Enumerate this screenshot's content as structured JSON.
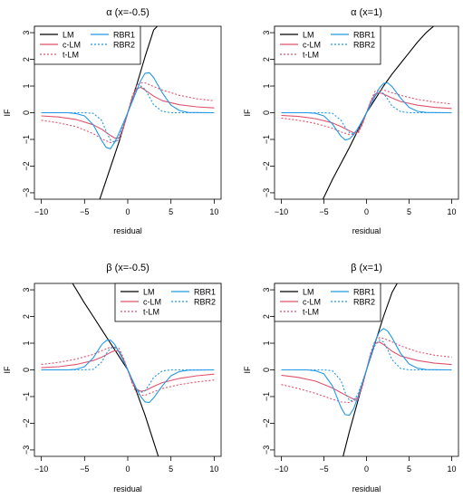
{
  "chart_data": [
    {
      "type": "line",
      "title": "α (x=-0.5)",
      "xlabel": "residual",
      "ylabel": "IF",
      "xlim": [
        -10,
        10
      ],
      "ylim": [
        -3,
        3
      ],
      "xticks": [
        -10,
        -5,
        0,
        5,
        10
      ],
      "yticks": [
        -3,
        -2,
        -1,
        0,
        1,
        2,
        3
      ],
      "legend_position": "top-left",
      "series": [
        {
          "name": "LM",
          "color": "#000000",
          "dash": "solid",
          "x": [
            -3.3,
            -2,
            -1,
            0,
            1,
            2,
            3,
            3.6
          ],
          "y": [
            -3.3,
            -2.05,
            -1.08,
            0,
            1.0,
            2.1,
            3.1,
            3.3
          ]
        },
        {
          "name": "c-LM",
          "color": "#df536b",
          "dash": "solid",
          "x": [
            -10,
            -8,
            -6,
            -4,
            -3,
            -2,
            -1.5,
            -1,
            -0.5,
            0,
            0.5,
            1,
            1.5,
            2,
            3,
            4,
            6,
            8,
            10
          ],
          "y": [
            -0.12,
            -0.16,
            -0.25,
            -0.45,
            -0.62,
            -0.85,
            -0.95,
            -0.95,
            -0.55,
            0,
            0.55,
            0.9,
            0.95,
            0.85,
            0.62,
            0.45,
            0.3,
            0.22,
            0.18
          ]
        },
        {
          "name": "t-LM",
          "color": "#df536b",
          "dash": "dotted",
          "x": [
            -10,
            -8,
            -6,
            -4,
            -3,
            -2,
            -1,
            -0.5,
            0,
            0.5,
            1,
            1.5,
            2,
            3,
            4,
            6,
            8,
            10
          ],
          "y": [
            -0.28,
            -0.38,
            -0.52,
            -0.78,
            -0.98,
            -1.12,
            -1.02,
            -0.6,
            0,
            0.6,
            1.02,
            1.12,
            1.12,
            0.98,
            0.85,
            0.65,
            0.52,
            0.45
          ]
        },
        {
          "name": "RBR1",
          "color": "#2297e6",
          "dash": "solid",
          "x": [
            -10,
            -7,
            -6,
            -5,
            -4,
            -3,
            -2.5,
            -2,
            -1.5,
            -1,
            -0.5,
            0,
            0.5,
            1,
            1.5,
            2,
            2.5,
            3,
            4,
            5,
            6,
            7,
            10
          ],
          "y": [
            0,
            0,
            -0.03,
            -0.12,
            -0.45,
            -1.05,
            -1.3,
            -1.35,
            -1.1,
            -0.75,
            -0.38,
            0,
            0.4,
            0.8,
            1.2,
            1.48,
            1.5,
            1.32,
            0.75,
            0.28,
            0.08,
            0.01,
            0
          ]
        },
        {
          "name": "RBR2",
          "color": "#2297e6",
          "dash": "dotted",
          "x": [
            -10,
            -5,
            -4,
            -3,
            -2.5,
            -2,
            -1.5,
            -1,
            -0.5,
            0,
            0.5,
            1,
            1.5,
            2,
            2.5,
            3,
            4,
            5,
            10
          ],
          "y": [
            0,
            0,
            -0.02,
            -0.3,
            -0.7,
            -1.02,
            -1.12,
            -0.9,
            -0.45,
            0,
            0.45,
            0.85,
            1.0,
            0.88,
            0.6,
            0.3,
            0.05,
            0,
            0
          ]
        }
      ]
    },
    {
      "type": "line",
      "title": "α (x=1)",
      "xlabel": "residual",
      "ylabel": "IF",
      "xlim": [
        -10,
        10
      ],
      "ylim": [
        -3,
        3
      ],
      "xticks": [
        -10,
        -5,
        0,
        5,
        10
      ],
      "yticks": [
        -3,
        -2,
        -1,
        0,
        1,
        2,
        3
      ],
      "legend_position": "top-left",
      "series": [
        {
          "name": "LM",
          "color": "#000000",
          "dash": "solid",
          "x": [
            -5.2,
            -4,
            -3,
            -2,
            -1,
            0,
            1,
            2,
            3,
            4,
            5,
            6,
            7,
            8.1
          ],
          "y": [
            -3.3,
            -2.5,
            -1.9,
            -1.3,
            -0.65,
            0,
            0.5,
            1.0,
            1.45,
            1.85,
            2.25,
            2.65,
            3.0,
            3.3
          ]
        },
        {
          "name": "c-LM",
          "color": "#df536b",
          "dash": "solid",
          "x": [
            -10,
            -8,
            -6,
            -4,
            -3,
            -2,
            -1.5,
            -1,
            -0.5,
            0,
            0.5,
            1,
            1.5,
            2,
            3,
            4,
            6,
            8,
            10
          ],
          "y": [
            -0.1,
            -0.14,
            -0.22,
            -0.38,
            -0.52,
            -0.68,
            -0.75,
            -0.72,
            -0.42,
            0,
            0.42,
            0.7,
            0.75,
            0.7,
            0.55,
            0.42,
            0.28,
            0.2,
            0.16
          ]
        },
        {
          "name": "t-LM",
          "color": "#df536b",
          "dash": "dotted",
          "x": [
            -10,
            -8,
            -6,
            -4,
            -3,
            -2,
            -1,
            -0.5,
            0,
            0.5,
            1,
            1.5,
            2,
            3,
            4,
            6,
            8,
            10
          ],
          "y": [
            -0.2,
            -0.28,
            -0.4,
            -0.58,
            -0.72,
            -0.82,
            -0.78,
            -0.45,
            0,
            0.45,
            0.8,
            0.86,
            0.85,
            0.75,
            0.65,
            0.5,
            0.4,
            0.33
          ]
        },
        {
          "name": "RBR1",
          "color": "#2297e6",
          "dash": "solid",
          "x": [
            -10,
            -7,
            -6,
            -5,
            -4,
            -3,
            -2.5,
            -2,
            -1.5,
            -1,
            -0.5,
            0,
            0.5,
            1,
            1.5,
            2,
            2.5,
            3,
            4,
            5,
            6,
            7,
            10
          ],
          "y": [
            0,
            0,
            -0.02,
            -0.12,
            -0.42,
            -0.88,
            -1.02,
            -0.98,
            -0.82,
            -0.58,
            -0.3,
            0,
            0.3,
            0.62,
            0.92,
            1.1,
            1.12,
            0.98,
            0.55,
            0.2,
            0.05,
            0.01,
            0
          ]
        },
        {
          "name": "RBR2",
          "color": "#2297e6",
          "dash": "dotted",
          "x": [
            -10,
            -5,
            -4,
            -3,
            -2.5,
            -2,
            -1.5,
            -1,
            -0.5,
            0,
            0.5,
            1,
            1.5,
            2,
            2.5,
            3,
            4,
            5,
            10
          ],
          "y": [
            0,
            0,
            -0.02,
            -0.28,
            -0.55,
            -0.75,
            -0.78,
            -0.62,
            -0.32,
            0,
            0.35,
            0.65,
            0.78,
            0.72,
            0.5,
            0.25,
            0.04,
            0,
            0
          ]
        }
      ]
    },
    {
      "type": "line",
      "title": "β (x=-0.5)",
      "xlabel": "residual",
      "ylabel": "IF",
      "xlim": [
        -10,
        10
      ],
      "ylim": [
        -3,
        3
      ],
      "xticks": [
        -10,
        -5,
        0,
        5,
        10
      ],
      "yticks": [
        -3,
        -2,
        -1,
        0,
        1,
        2,
        3
      ],
      "legend_position": "top-right",
      "series": [
        {
          "name": "LM",
          "color": "#000000",
          "dash": "solid",
          "x": [
            -6.5,
            -5,
            -4,
            -3,
            -2,
            -1,
            0,
            1,
            2,
            3,
            3.6
          ],
          "y": [
            3.3,
            2.5,
            2.0,
            1.5,
            1.0,
            0.5,
            0,
            -0.8,
            -1.7,
            -2.7,
            -3.3
          ]
        },
        {
          "name": "c-LM",
          "color": "#df536b",
          "dash": "solid",
          "x": [
            -10,
            -8,
            -6,
            -4,
            -3,
            -2,
            -1.5,
            -1,
            -0.5,
            0,
            0.5,
            1,
            1.5,
            2,
            3,
            4,
            6,
            8,
            10
          ],
          "y": [
            0.08,
            0.12,
            0.2,
            0.35,
            0.48,
            0.65,
            0.72,
            0.7,
            0.4,
            0,
            -0.45,
            -0.72,
            -0.8,
            -0.78,
            -0.62,
            -0.48,
            -0.32,
            -0.22,
            -0.16
          ]
        },
        {
          "name": "t-LM",
          "color": "#df536b",
          "dash": "dotted",
          "x": [
            -10,
            -8,
            -6,
            -4,
            -3,
            -2,
            -1,
            -0.5,
            0,
            0.5,
            1,
            1.5,
            2,
            3,
            4,
            6,
            8,
            10
          ],
          "y": [
            0.2,
            0.28,
            0.4,
            0.58,
            0.72,
            0.85,
            0.8,
            0.45,
            0,
            -0.5,
            -0.85,
            -0.95,
            -0.95,
            -0.82,
            -0.7,
            -0.55,
            -0.45,
            -0.38
          ]
        },
        {
          "name": "RBR1",
          "color": "#2297e6",
          "dash": "solid",
          "x": [
            -10,
            -7,
            -6,
            -5,
            -4,
            -3,
            -2.5,
            -2,
            -1.5,
            -1,
            -0.5,
            0,
            0.5,
            1,
            1.5,
            2,
            2.5,
            3,
            4,
            5,
            6,
            7,
            10
          ],
          "y": [
            0,
            0,
            0.02,
            0.12,
            0.45,
            0.95,
            1.1,
            1.12,
            0.95,
            0.65,
            0.35,
            0,
            -0.35,
            -0.7,
            -1.0,
            -1.2,
            -1.22,
            -1.05,
            -0.6,
            -0.22,
            -0.06,
            -0.01,
            0
          ]
        },
        {
          "name": "RBR2",
          "color": "#2297e6",
          "dash": "dotted",
          "x": [
            -10,
            -5,
            -4,
            -3,
            -2.5,
            -2,
            -1.5,
            -1,
            -0.5,
            0,
            0.5,
            1,
            1.5,
            2,
            2.5,
            3,
            4,
            5,
            10
          ],
          "y": [
            0,
            0,
            0.02,
            0.3,
            0.6,
            0.82,
            0.85,
            0.7,
            0.35,
            0,
            -0.38,
            -0.72,
            -0.85,
            -0.78,
            -0.55,
            -0.28,
            -0.04,
            0,
            0
          ]
        }
      ]
    },
    {
      "type": "line",
      "title": "β (x=1)",
      "xlabel": "residual",
      "ylabel": "IF",
      "xlim": [
        -10,
        10
      ],
      "ylim": [
        -3,
        3
      ],
      "xticks": [
        -10,
        -5,
        0,
        5,
        10
      ],
      "yticks": [
        -3,
        -2,
        -1,
        0,
        1,
        2,
        3
      ],
      "legend_position": "top-left",
      "series": [
        {
          "name": "LM",
          "color": "#000000",
          "dash": "solid",
          "x": [
            -2.8,
            -2,
            -1,
            0,
            1,
            2,
            3,
            3.7
          ],
          "y": [
            -3.3,
            -2.3,
            -1.15,
            0,
            1.0,
            2.0,
            2.9,
            3.3
          ]
        },
        {
          "name": "c-LM",
          "color": "#df536b",
          "dash": "solid",
          "x": [
            -10,
            -8,
            -6,
            -4,
            -3,
            -2,
            -1.5,
            -1,
            -0.5,
            0,
            0.5,
            1,
            1.5,
            2,
            3,
            4,
            6,
            8,
            10
          ],
          "y": [
            -0.2,
            -0.28,
            -0.42,
            -0.68,
            -0.85,
            -1.02,
            -1.1,
            -1.05,
            -0.6,
            0,
            0.6,
            0.98,
            1.05,
            0.95,
            0.7,
            0.52,
            0.35,
            0.25,
            0.2
          ]
        },
        {
          "name": "t-LM",
          "color": "#df536b",
          "dash": "dotted",
          "x": [
            -10,
            -8,
            -6,
            -4,
            -3,
            -2,
            -1,
            -0.5,
            0,
            0.5,
            1,
            1.5,
            2,
            3,
            4,
            6,
            8,
            10
          ],
          "y": [
            -0.55,
            -0.7,
            -0.88,
            -1.1,
            -1.2,
            -1.22,
            -1.1,
            -0.65,
            0,
            0.65,
            1.1,
            1.2,
            1.18,
            1.05,
            0.9,
            0.68,
            0.55,
            0.48
          ]
        },
        {
          "name": "RBR1",
          "color": "#2297e6",
          "dash": "solid",
          "x": [
            -10,
            -7,
            -6,
            -5,
            -4,
            -3,
            -2.5,
            -2,
            -1.5,
            -1,
            -0.5,
            0,
            0.5,
            1,
            1.5,
            2,
            2.5,
            3,
            4,
            5,
            6,
            7,
            10
          ],
          "y": [
            0,
            0,
            -0.03,
            -0.15,
            -0.6,
            -1.4,
            -1.68,
            -1.7,
            -1.45,
            -1.0,
            -0.5,
            0,
            0.55,
            1.05,
            1.42,
            1.55,
            1.45,
            1.2,
            0.62,
            0.22,
            0.06,
            0.01,
            0
          ]
        },
        {
          "name": "RBR2",
          "color": "#2297e6",
          "dash": "dotted",
          "x": [
            -10,
            -5,
            -4,
            -3,
            -2.5,
            -2,
            -1.5,
            -1,
            -0.5,
            0,
            0.5,
            1,
            1.5,
            2,
            2.5,
            3,
            4,
            5,
            10
          ],
          "y": [
            0,
            0,
            -0.03,
            -0.4,
            -0.85,
            -1.15,
            -1.15,
            -0.9,
            -0.45,
            0,
            0.5,
            0.92,
            1.12,
            1.05,
            0.75,
            0.38,
            0.05,
            0,
            0
          ]
        }
      ]
    }
  ]
}
